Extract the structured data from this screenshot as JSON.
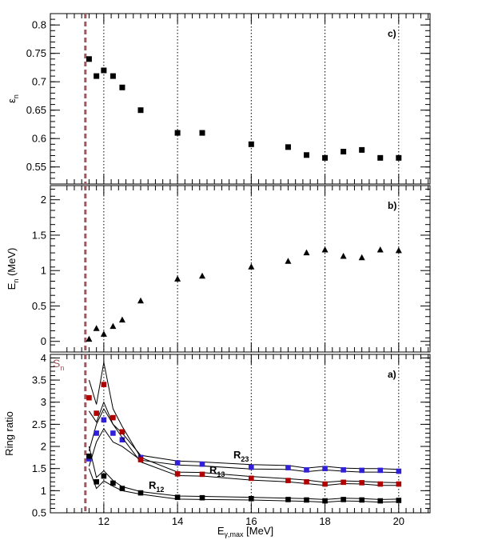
{
  "chart_data": [
    {
      "type": "scatter",
      "panel_label": "c)",
      "ylabel": "ε",
      "ylabel_sub": "n",
      "ylim": [
        0.52,
        0.82
      ],
      "yticks": [
        0.55,
        0.6,
        0.65,
        0.7,
        0.75,
        0.8
      ],
      "marker": "square",
      "x": [
        11.6,
        11.8,
        12.0,
        12.25,
        12.5,
        13.0,
        14.0,
        14.67,
        16.0,
        17.0,
        17.5,
        18.0,
        18.5,
        19.0,
        19.5,
        20.0
      ],
      "y": [
        0.74,
        0.71,
        0.72,
        0.71,
        0.69,
        0.65,
        0.61,
        0.61,
        0.59,
        0.585,
        0.571,
        0.566,
        0.577,
        0.58,
        0.566,
        0.566
      ]
    },
    {
      "type": "scatter",
      "panel_label": "b)",
      "ylabel": "E",
      "ylabel_sub": "n",
      "ylabel_unit": " (MeV)",
      "ylim": [
        -0.15,
        2.2
      ],
      "yticks": [
        0,
        0.5,
        1,
        1.5,
        2
      ],
      "marker": "triangle",
      "x": [
        11.6,
        11.8,
        12.0,
        12.25,
        12.5,
        13.0,
        14.0,
        14.67,
        16.0,
        17.0,
        17.5,
        18.0,
        18.5,
        19.0,
        19.5,
        20.0
      ],
      "y": [
        0.03,
        0.18,
        0.1,
        0.21,
        0.3,
        0.57,
        0.88,
        0.92,
        1.05,
        1.13,
        1.25,
        1.29,
        1.2,
        1.18,
        1.29,
        1.28
      ]
    },
    {
      "type": "line",
      "panel_label": "a)",
      "ylabel": "Ring ratio",
      "xlabel": "E",
      "xlabel_sub": "γ,max",
      "xlabel_unit": " [MeV]",
      "xlim": [
        10.55,
        20.85
      ],
      "ylim": [
        0.5,
        4.08
      ],
      "yticks": [
        0.5,
        1,
        1.5,
        2,
        2.5,
        3,
        3.5,
        4
      ],
      "xticks": [
        12,
        14,
        16,
        18,
        20
      ],
      "threshold": {
        "label": "S",
        "label_sub": "n",
        "x": 11.5,
        "color": "#a0575e"
      },
      "series": [
        {
          "name": "R",
          "name_sub": "23",
          "color": "#3020d8",
          "x": [
            11.6,
            11.8,
            12.0,
            12.25,
            12.5,
            13.0,
            14.0,
            14.67,
            16.0,
            17.0,
            17.5,
            18.0,
            18.5,
            19.0,
            19.5,
            20.0
          ],
          "values": [
            1.72,
            2.3,
            2.6,
            2.3,
            2.15,
            1.75,
            1.63,
            1.6,
            1.53,
            1.52,
            1.47,
            1.5,
            1.47,
            1.46,
            1.46,
            1.44
          ],
          "upper": [
            1.9,
            2.5,
            2.85,
            2.5,
            2.3,
            1.8,
            1.67,
            1.65,
            1.59,
            1.57,
            1.51,
            1.55,
            1.51,
            1.5,
            1.5,
            1.48
          ],
          "lower": [
            1.55,
            2.1,
            2.4,
            2.1,
            2.0,
            1.69,
            1.58,
            1.56,
            1.49,
            1.48,
            1.43,
            1.47,
            1.44,
            1.42,
            1.42,
            1.41
          ]
        },
        {
          "name": "R",
          "name_sub": "13",
          "color": "#b00000",
          "x": [
            11.6,
            11.8,
            12.0,
            12.25,
            12.5,
            13.0,
            14.0,
            14.67,
            16.0,
            17.0,
            17.5,
            18.0,
            18.5,
            19.0,
            19.5,
            20.0
          ],
          "values": [
            3.1,
            2.75,
            3.4,
            2.65,
            2.33,
            1.7,
            1.38,
            1.37,
            1.28,
            1.23,
            1.2,
            1.15,
            1.19,
            1.18,
            1.15,
            1.15
          ],
          "upper": [
            3.5,
            2.95,
            3.9,
            2.85,
            2.45,
            1.75,
            1.42,
            1.41,
            1.32,
            1.27,
            1.24,
            1.19,
            1.22,
            1.21,
            1.19,
            1.18
          ],
          "lower": [
            2.8,
            2.55,
            3.0,
            2.5,
            2.2,
            1.65,
            1.34,
            1.33,
            1.24,
            1.2,
            1.16,
            1.12,
            1.16,
            1.15,
            1.12,
            1.12
          ]
        },
        {
          "name": "R",
          "name_sub": "12",
          "color": "#000000",
          "x": [
            11.6,
            11.8,
            12.0,
            12.25,
            12.5,
            13.0,
            14.0,
            14.67,
            16.0,
            17.0,
            17.5,
            18.0,
            18.5,
            19.0,
            19.5,
            20.0
          ],
          "values": [
            1.78,
            1.2,
            1.33,
            1.17,
            1.05,
            0.95,
            0.85,
            0.84,
            0.82,
            0.8,
            0.79,
            0.77,
            0.8,
            0.79,
            0.77,
            0.78
          ],
          "upper": [
            2.0,
            1.3,
            1.45,
            1.23,
            1.09,
            0.98,
            0.88,
            0.87,
            0.85,
            0.83,
            0.82,
            0.8,
            0.83,
            0.82,
            0.8,
            0.81
          ],
          "lower": [
            1.5,
            1.05,
            1.22,
            1.1,
            1.0,
            0.92,
            0.81,
            0.8,
            0.79,
            0.77,
            0.76,
            0.74,
            0.77,
            0.76,
            0.74,
            0.75
          ]
        }
      ]
    }
  ]
}
